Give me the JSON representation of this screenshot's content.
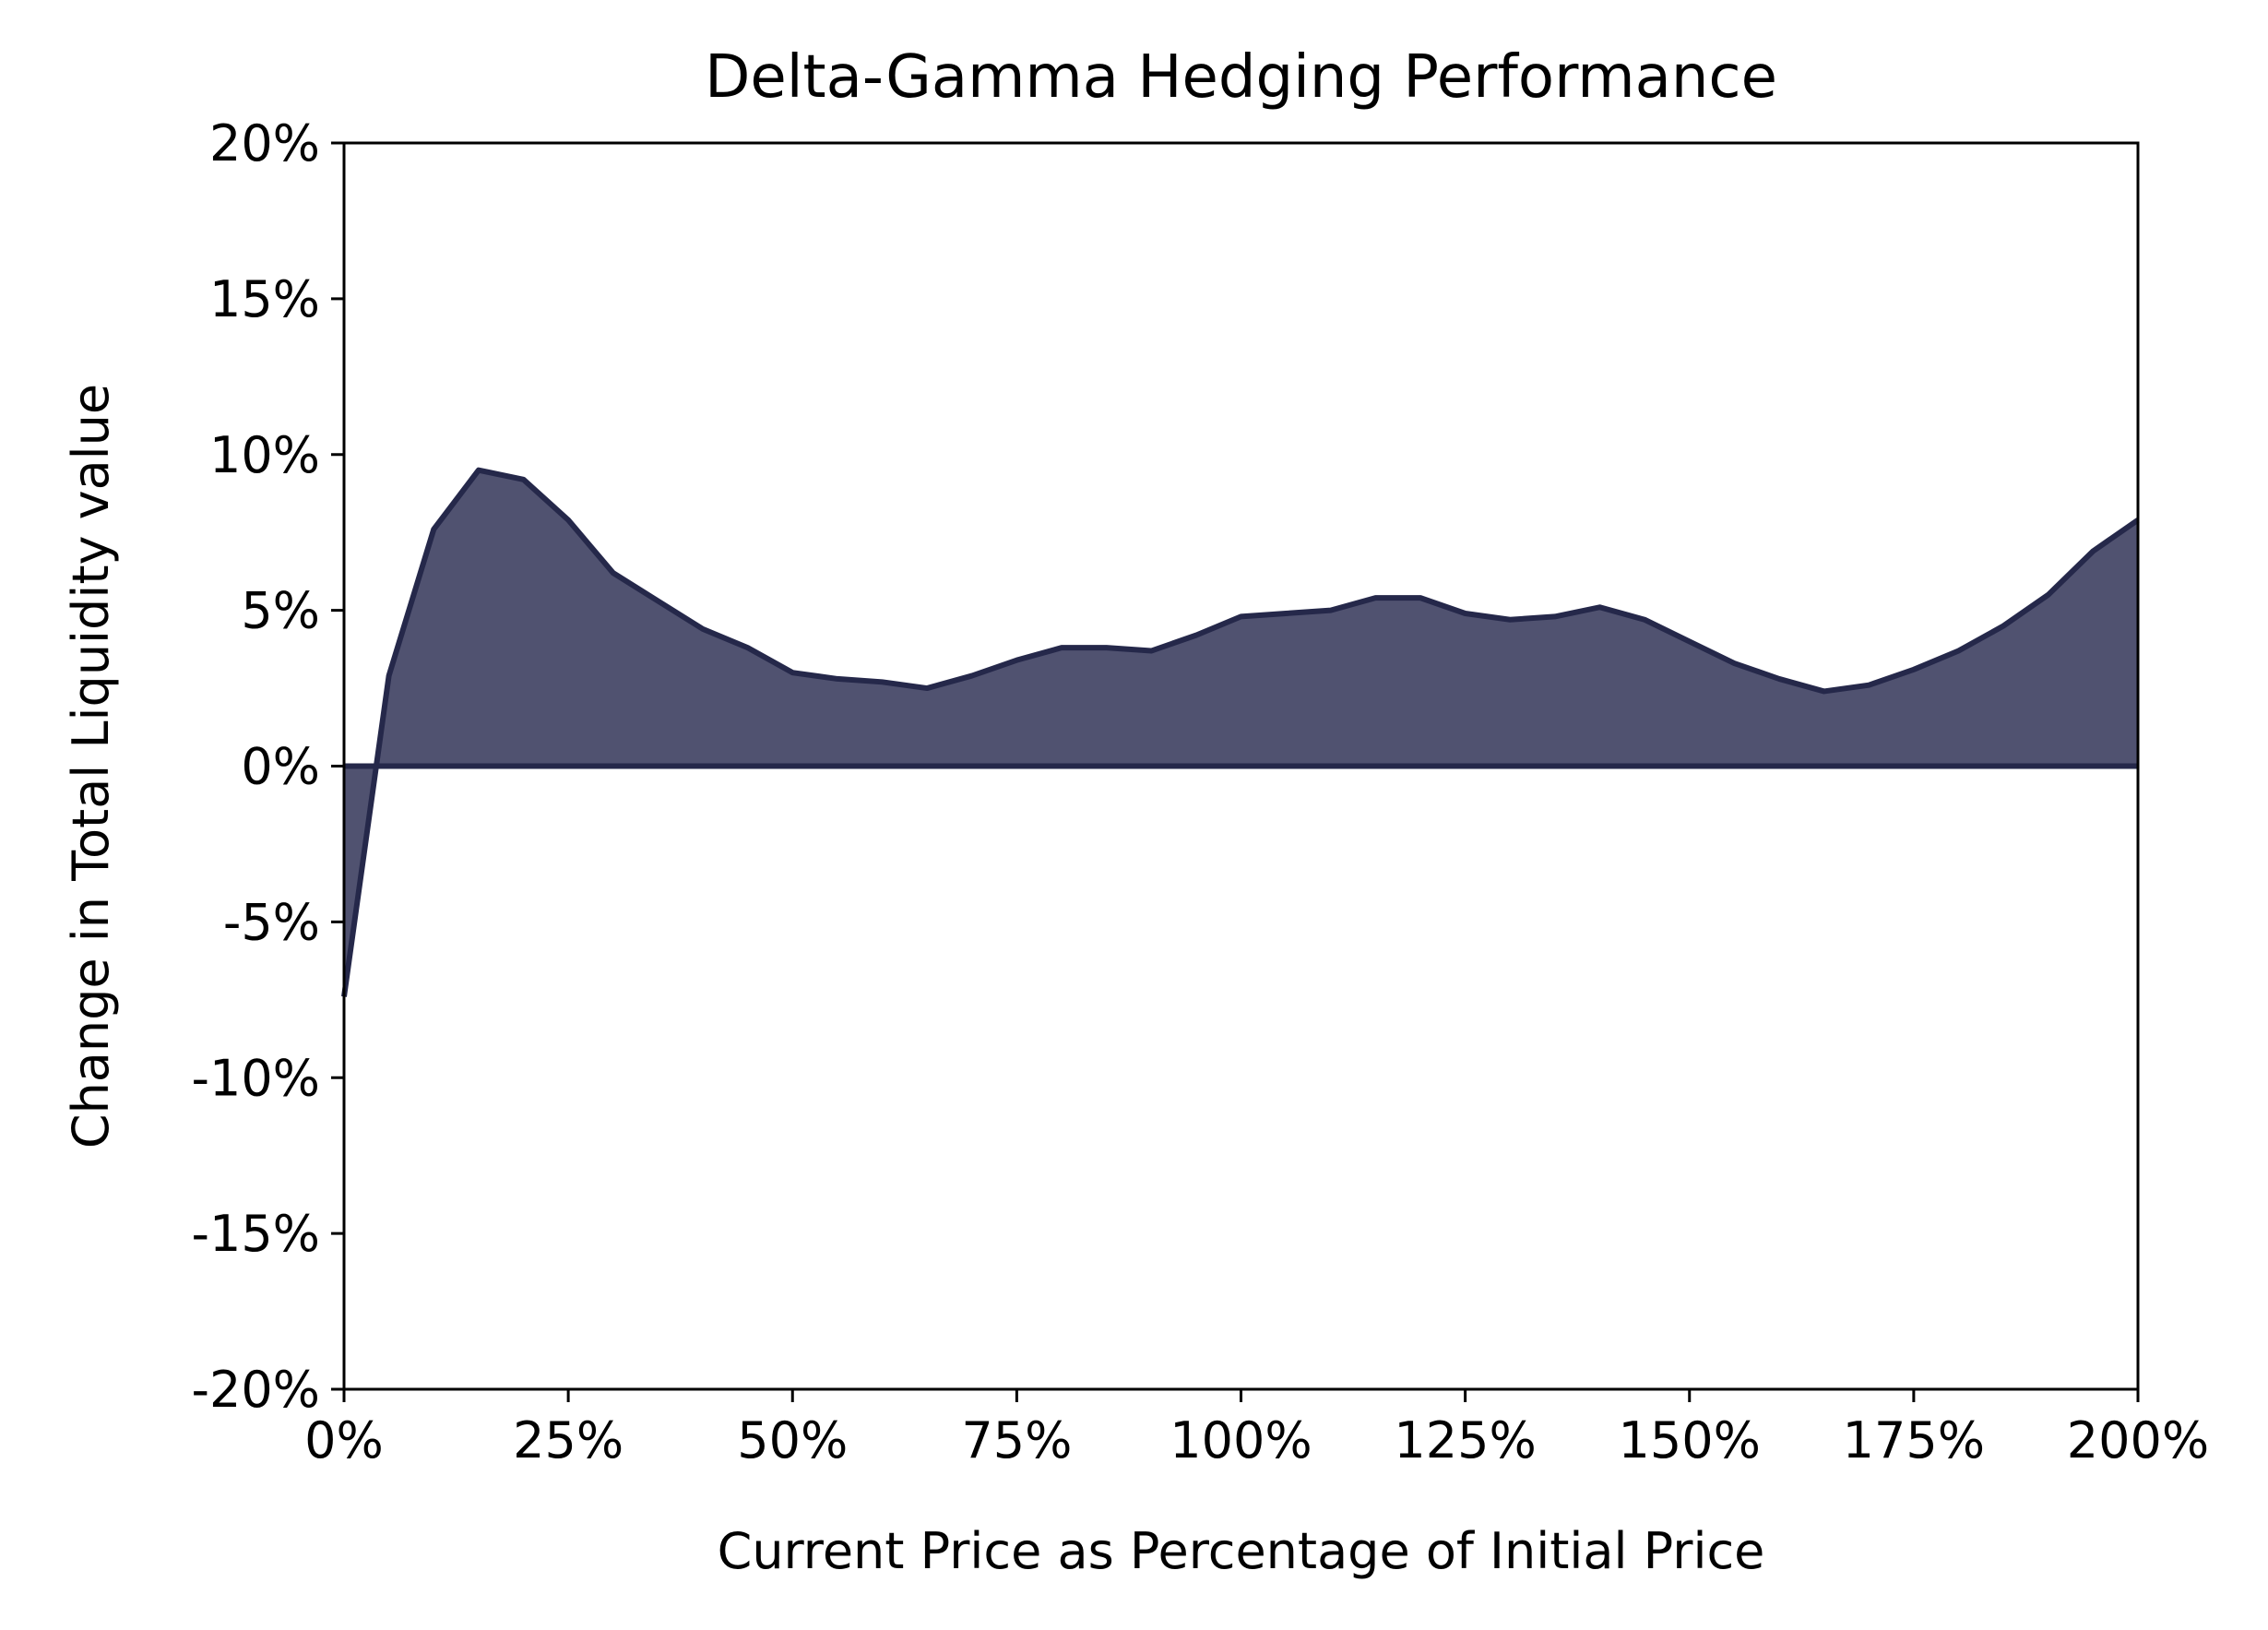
{
  "chart_data": {
    "type": "area",
    "title": "Delta-Gamma Hedging Performance",
    "xlabel": "Current Price as Percentage of Initial Price",
    "ylabel": "Change in Total Liquidity value",
    "xlim": [
      0,
      200
    ],
    "ylim": [
      -20,
      20
    ],
    "x_ticks": [
      0,
      25,
      50,
      75,
      100,
      125,
      150,
      175,
      200
    ],
    "x_tick_labels": [
      "0%",
      "25%",
      "50%",
      "75%",
      "100%",
      "125%",
      "150%",
      "175%",
      "200%"
    ],
    "y_ticks": [
      -20,
      -15,
      -10,
      -5,
      0,
      5,
      10,
      15,
      20
    ],
    "y_tick_labels": [
      "-20%",
      "-15%",
      "-10%",
      "-5%",
      "0%",
      "5%",
      "10%",
      "15%",
      "20%"
    ],
    "grid": false,
    "fill_baseline": 0,
    "color": "#25284a",
    "fill_color": "#505270",
    "series": [
      {
        "x": [
          0,
          5,
          10,
          15,
          20,
          25,
          30,
          35,
          40,
          45,
          50,
          55,
          60,
          65,
          70,
          75,
          80,
          85,
          90,
          95,
          100,
          105,
          110,
          115,
          120,
          125,
          130,
          135,
          140,
          145,
          150,
          155,
          160,
          165,
          170,
          175,
          180,
          185,
          190,
          195,
          200
        ],
        "y": [
          -7.4,
          2.9,
          7.6,
          9.5,
          9.2,
          7.9,
          6.2,
          5.3,
          4.4,
          3.8,
          3.0,
          2.8,
          2.7,
          2.5,
          2.9,
          3.4,
          3.8,
          3.8,
          3.7,
          4.2,
          4.8,
          4.9,
          5.0,
          5.4,
          5.4,
          4.9,
          4.7,
          4.8,
          5.1,
          4.7,
          4.0,
          3.3,
          2.8,
          2.4,
          2.6,
          3.1,
          3.7,
          4.5,
          5.5,
          6.9,
          7.9
        ]
      }
    ]
  }
}
